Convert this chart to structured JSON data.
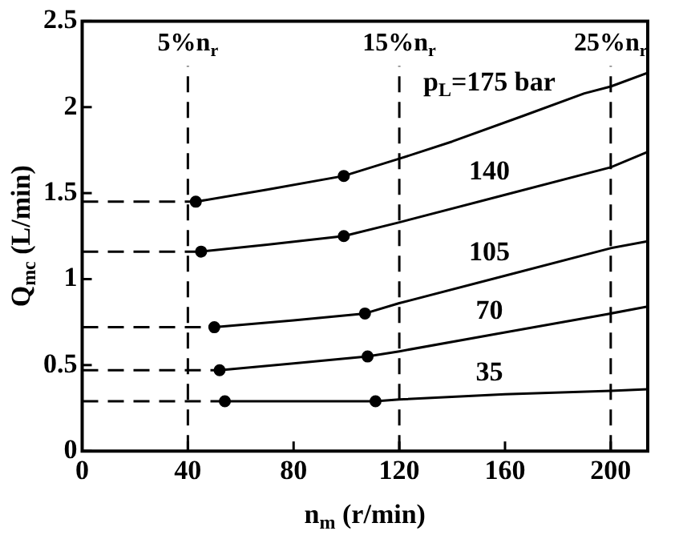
{
  "chart_data": {
    "type": "line",
    "xlabel": "n$_{m}$ (r/min)",
    "ylabel": "Q$_{mc}$ (L/min)",
    "xlim": [
      0,
      214
    ],
    "ylim": [
      0,
      2.5
    ],
    "xticks": [
      0,
      40,
      80,
      120,
      160,
      200
    ],
    "yticks": [
      0,
      0.5,
      1,
      1.5,
      2,
      2.5
    ],
    "grid": false,
    "legend": false,
    "marker": "none",
    "series": [
      {
        "name": "p$_{L}$=175 bar",
        "color": "#000000",
        "x": [
          43,
          70,
          99,
          120,
          140,
          167,
          190,
          200,
          214
        ],
        "values": [
          1.45,
          1.52,
          1.6,
          1.7,
          1.8,
          1.95,
          2.08,
          2.12,
          2.2
        ]
      },
      {
        "name": "140",
        "color": "#000000",
        "x": [
          45,
          70,
          99,
          120,
          160,
          200,
          214
        ],
        "values": [
          1.16,
          1.2,
          1.25,
          1.33,
          1.49,
          1.65,
          1.74
        ]
      },
      {
        "name": "105",
        "color": "#000000",
        "x": [
          50,
          80,
          107,
          120,
          160,
          200,
          214
        ],
        "values": [
          0.72,
          0.76,
          0.8,
          0.86,
          1.02,
          1.18,
          1.22
        ]
      },
      {
        "name": "70",
        "color": "#000000",
        "x": [
          52,
          80,
          108,
          120,
          160,
          200,
          214
        ],
        "values": [
          0.47,
          0.51,
          0.55,
          0.58,
          0.69,
          0.8,
          0.84
        ]
      },
      {
        "name": "35",
        "color": "#000000",
        "x": [
          54,
          80,
          111,
          120,
          160,
          200,
          214
        ],
        "values": [
          0.29,
          0.29,
          0.29,
          0.3,
          0.33,
          0.35,
          0.36
        ]
      },
      {
        "type": "scatter",
        "color": "#000000",
        "marker": "circle",
        "x": [
          43,
          99,
          45,
          99,
          50,
          107,
          52,
          108,
          54,
          111
        ],
        "values": [
          1.45,
          1.6,
          1.16,
          1.25,
          0.72,
          0.8,
          0.47,
          0.55,
          0.29,
          0.29
        ]
      },
      {
        "color": "#000000",
        "line_style": "dashed",
        "x": [
          0,
          43
        ],
        "values": [
          1.45,
          1.45
        ]
      },
      {
        "color": "#000000",
        "line_style": "dashed",
        "x": [
          0,
          45
        ],
        "values": [
          1.16,
          1.16
        ]
      },
      {
        "color": "#000000",
        "line_style": "dashed",
        "x": [
          0,
          50
        ],
        "values": [
          0.72,
          0.72
        ]
      },
      {
        "color": "#000000",
        "line_style": "dashed",
        "x": [
          0,
          52
        ],
        "values": [
          0.47,
          0.47
        ]
      },
      {
        "color": "#000000",
        "line_style": "dashed",
        "x": [
          0,
          54
        ],
        "values": [
          0.29,
          0.29
        ]
      }
    ],
    "ref_lines": [
      {
        "axis": "x",
        "value": 40,
        "label": "5%n$_{r}$",
        "line_style": "dashed"
      },
      {
        "axis": "x",
        "value": 120,
        "label": "15%n$_{r}$",
        "line_style": "dashed"
      },
      {
        "axis": "x",
        "value": 200,
        "label": "25%n$_{r}$",
        "line_style": "dashed"
      }
    ]
  }
}
